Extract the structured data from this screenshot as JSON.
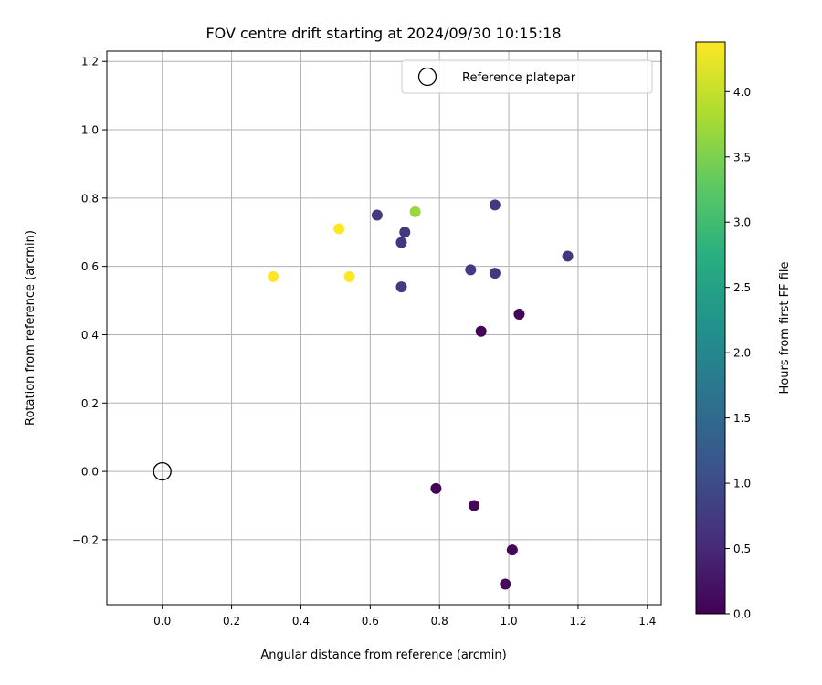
{
  "chart_data": {
    "type": "scatter",
    "title": "FOV centre drift starting at 2024/09/30 10:15:18",
    "xlabel": "Angular distance from reference (arcmin)",
    "ylabel": "Rotation from reference (arcmin)",
    "xlim": [
      -0.16,
      1.44
    ],
    "ylim": [
      -0.39,
      1.23
    ],
    "xticks": [
      "0.0",
      "0.2",
      "0.4",
      "0.6",
      "0.8",
      "1.0",
      "1.2",
      "1.4"
    ],
    "yticks": [
      "−0.2",
      "0.0",
      "0.2",
      "0.4",
      "0.6",
      "0.8",
      "1.0",
      "1.2"
    ],
    "grid": true,
    "legend_position": "top-right",
    "reference": {
      "name": "Reference platepar",
      "x": 0.0,
      "y": 0.0
    },
    "colorbar": {
      "label": "Hours from first FF file",
      "range": [
        0,
        4.38
      ],
      "ticks": [
        "0.0",
        "0.5",
        "1.0",
        "1.5",
        "2.0",
        "2.5",
        "3.0",
        "3.5",
        "4.0"
      ],
      "colormap": "viridis"
    },
    "points": [
      {
        "x": 0.79,
        "y": -0.05,
        "hours": 0.05
      },
      {
        "x": 0.9,
        "y": -0.1,
        "hours": 0.05
      },
      {
        "x": 1.01,
        "y": -0.23,
        "hours": 0.05
      },
      {
        "x": 0.99,
        "y": -0.33,
        "hours": 0.08
      },
      {
        "x": 0.92,
        "y": 0.41,
        "hours": 0.05
      },
      {
        "x": 1.03,
        "y": 0.46,
        "hours": 0.05
      },
      {
        "x": 0.62,
        "y": 0.75,
        "hours": 0.75
      },
      {
        "x": 0.7,
        "y": 0.7,
        "hours": 0.7
      },
      {
        "x": 0.69,
        "y": 0.67,
        "hours": 0.7
      },
      {
        "x": 0.69,
        "y": 0.54,
        "hours": 0.75
      },
      {
        "x": 0.89,
        "y": 0.59,
        "hours": 0.75
      },
      {
        "x": 0.96,
        "y": 0.58,
        "hours": 0.7
      },
      {
        "x": 0.96,
        "y": 0.78,
        "hours": 0.75
      },
      {
        "x": 1.17,
        "y": 0.63,
        "hours": 0.7
      },
      {
        "x": 0.73,
        "y": 0.76,
        "hours": 3.7
      },
      {
        "x": 0.51,
        "y": 0.71,
        "hours": 4.38
      },
      {
        "x": 0.32,
        "y": 0.57,
        "hours": 4.38
      },
      {
        "x": 0.54,
        "y": 0.57,
        "hours": 4.38
      }
    ]
  }
}
